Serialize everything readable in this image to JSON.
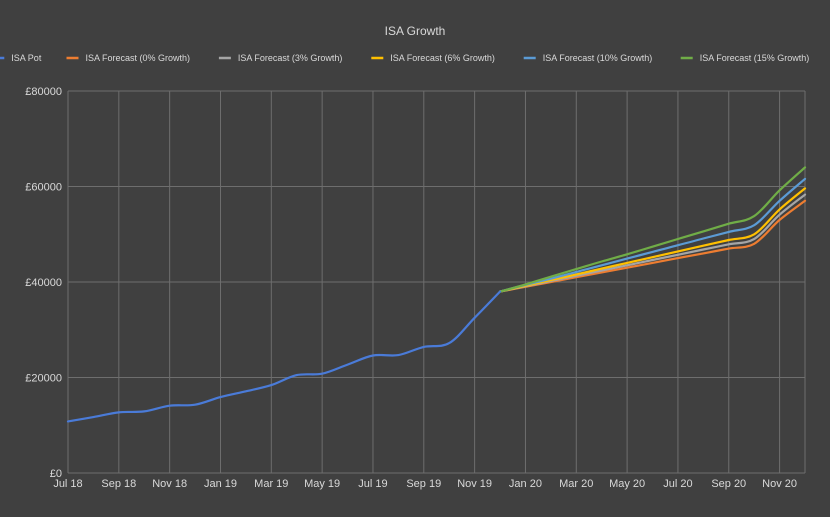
{
  "chart_data": {
    "type": "line",
    "title": "ISA Growth",
    "xlabel": "",
    "ylabel": "",
    "ylim": [
      0,
      80000
    ],
    "y_ticks": [
      0,
      20000,
      40000,
      60000,
      80000
    ],
    "y_tick_labels": [
      "£0",
      "£20000",
      "£40000",
      "£60000",
      "£80000"
    ],
    "x_tick_labels": [
      "Jul 18",
      "Sep 18",
      "Nov 18",
      "Jan 19",
      "Mar 19",
      "May 19",
      "Jul 19",
      "Sep 19",
      "Nov 19",
      "Jan 20",
      "Mar 20",
      "May 20",
      "Jul 20",
      "Sep 20",
      "Nov 20"
    ],
    "x_range": [
      "Jul 18",
      "Dec 20"
    ],
    "grid": true,
    "legend_position": "top",
    "background": "#404040",
    "series": [
      {
        "name": "ISA Pot",
        "color": "#4a7bd8",
        "x": [
          "Jul 18",
          "Aug 18",
          "Sep 18",
          "Oct 18",
          "Nov 18",
          "Dec 18",
          "Jan 19",
          "Feb 19",
          "Mar 19",
          "Apr 19",
          "May 19",
          "Jun 19",
          "Jul 19",
          "Aug 19",
          "Sep 19",
          "Oct 19",
          "Nov 19",
          "Dec 19"
        ],
        "values": [
          10800,
          11700,
          12700,
          12900,
          14100,
          14300,
          15900,
          17100,
          18400,
          20500,
          20800,
          22700,
          24600,
          24700,
          26400,
          27200,
          32500,
          38000
        ]
      },
      {
        "name": "ISA Forecast (0% Growth)",
        "color": "#ed7d31",
        "x": [
          "Dec 19",
          "Jan 20",
          "Feb 20",
          "Mar 20",
          "Apr 20",
          "May 20",
          "Jun 20",
          "Jul 20",
          "Aug 20",
          "Sep 20",
          "Oct 20",
          "Nov 20",
          "Dec 20"
        ],
        "values": [
          38000,
          39000,
          40000,
          41000,
          42000,
          43000,
          44000,
          45000,
          46000,
          47000,
          48000,
          53000,
          57000
        ]
      },
      {
        "name": "ISA Forecast (3% Growth)",
        "color": "#a5a5a5",
        "x": [
          "Dec 19",
          "Jan 20",
          "Feb 20",
          "Mar 20",
          "Apr 20",
          "May 20",
          "Jun 20",
          "Jul 20",
          "Aug 20",
          "Sep 20",
          "Oct 20",
          "Nov 20",
          "Dec 20"
        ],
        "values": [
          38000,
          39100,
          40200,
          41300,
          42400,
          43500,
          44600,
          45700,
          46800,
          47900,
          49000,
          54100,
          58300
        ]
      },
      {
        "name": "ISA Forecast (6% Growth)",
        "color": "#ffc000",
        "x": [
          "Dec 19",
          "Jan 20",
          "Feb 20",
          "Mar 20",
          "Apr 20",
          "May 20",
          "Jun 20",
          "Jul 20",
          "Aug 20",
          "Sep 20",
          "Oct 20",
          "Nov 20",
          "Dec 20"
        ],
        "values": [
          38000,
          39200,
          40400,
          41600,
          42800,
          44000,
          45200,
          46400,
          47600,
          48800,
          50000,
          55200,
          59600
        ]
      },
      {
        "name": "ISA Forecast (10% Growth)",
        "color": "#5b9bd5",
        "x": [
          "Dec 19",
          "Jan 20",
          "Feb 20",
          "Mar 20",
          "Apr 20",
          "May 20",
          "Jun 20",
          "Jul 20",
          "Aug 20",
          "Sep 20",
          "Oct 20",
          "Nov 20",
          "Dec 20"
        ],
        "values": [
          38000,
          39400,
          40700,
          42100,
          43500,
          44900,
          46300,
          47700,
          49100,
          50500,
          51900,
          57000,
          61600
        ]
      },
      {
        "name": "ISA Forecast (15% Growth)",
        "color": "#70ad47",
        "x": [
          "Dec 19",
          "Jan 20",
          "Feb 20",
          "Mar 20",
          "Apr 20",
          "May 20",
          "Jun 20",
          "Jul 20",
          "Aug 20",
          "Sep 20",
          "Oct 20",
          "Nov 20",
          "Dec 20"
        ],
        "values": [
          38000,
          39500,
          41100,
          42700,
          44300,
          45800,
          47400,
          49000,
          50600,
          52200,
          53800,
          59200,
          64000
        ]
      }
    ]
  }
}
